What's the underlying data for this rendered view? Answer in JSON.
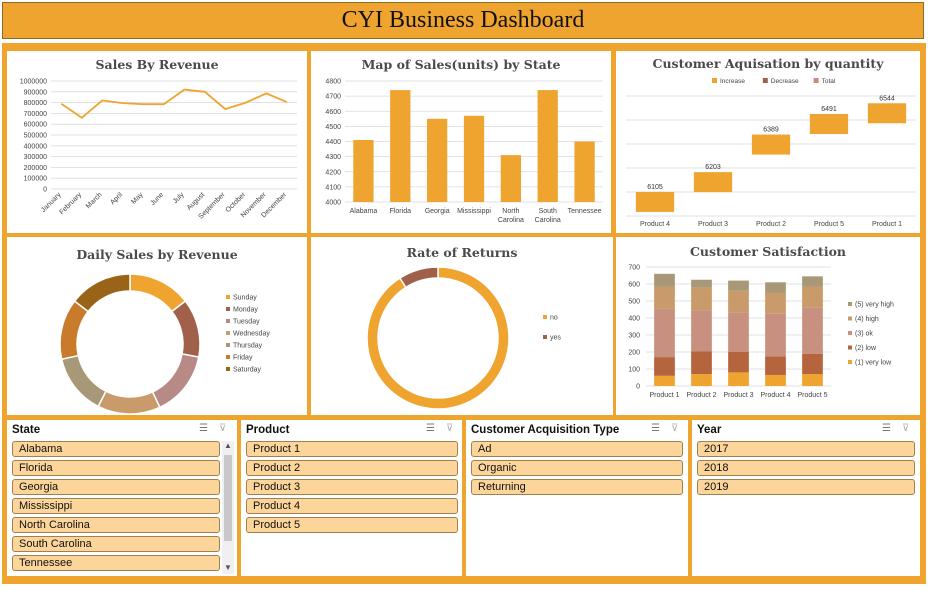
{
  "title": "CYI Business Dashboard",
  "chart_data": [
    {
      "id": "sales-by-revenue",
      "type": "line",
      "title": "Sales By Revenue",
      "categories": [
        "January",
        "February",
        "March",
        "April",
        "May",
        "June",
        "July",
        "August",
        "September",
        "October",
        "November",
        "December"
      ],
      "values": [
        790000,
        660000,
        820000,
        795000,
        785000,
        785000,
        920000,
        900000,
        740000,
        800000,
        885000,
        805000
      ],
      "ylim": [
        0,
        1000000
      ],
      "yticks": [
        "1000000",
        "900000",
        "800000",
        "700000",
        "600000",
        "500000",
        "400000",
        "300000",
        "200000",
        "100000",
        "0"
      ],
      "grid": true,
      "color": "#f0a430"
    },
    {
      "id": "map-of-sales",
      "type": "bar",
      "title": "Map of Sales(units) by State",
      "categories": [
        "Alabama",
        "Florida",
        "Georgia",
        "Mississippi",
        "North Carolina",
        "South Carolina",
        "Tennessee"
      ],
      "values": [
        4410,
        4740,
        4550,
        4570,
        4310,
        4740,
        4400
      ],
      "ylim": [
        4000,
        4800
      ],
      "yticks": [
        "4800",
        "4700",
        "4600",
        "4500",
        "4400",
        "4300",
        "4200",
        "4100",
        "4000"
      ],
      "grid": true,
      "color": "#f0a430"
    },
    {
      "id": "customer-acquisition",
      "type": "bar",
      "subtype": "waterfall",
      "title": "Customer Aquisation by quantity",
      "legend": [
        "Increase",
        "Decrease",
        "Total"
      ],
      "legend_colors": [
        "#f0a430",
        "#a0604a",
        "#c98a7a"
      ],
      "legend_position": "top",
      "categories": [
        "Product 4",
        "Product 3",
        "Product 2",
        "Product 5",
        "Product 1"
      ],
      "values": [
        6105,
        6203,
        6389,
        6491,
        6544
      ],
      "data_labels": [
        "6105",
        "6203",
        "6389",
        "6491",
        "6544"
      ],
      "grid": true
    },
    {
      "id": "daily-sales",
      "type": "pie",
      "subtype": "doughnut",
      "title": "Daily Sales by Revenue",
      "categories": [
        "Sunday",
        "Monday",
        "Tuesday",
        "Wednesday",
        "Thursday",
        "Friday",
        "Saturday"
      ],
      "values": [
        14.5,
        13.5,
        15.0,
        14.5,
        14.0,
        14.0,
        14.5
      ],
      "colors": [
        "#f0a430",
        "#a0604a",
        "#b88a85",
        "#c99a6a",
        "#a89878",
        "#c97a2a",
        "#9a6418"
      ],
      "legend_position": "right"
    },
    {
      "id": "rate-of-returns",
      "type": "pie",
      "subtype": "doughnut",
      "title": "Rate of Returns",
      "categories": [
        "no",
        "yes"
      ],
      "values": [
        91,
        9
      ],
      "colors": [
        "#f0a430",
        "#a0604a"
      ],
      "legend_position": "right"
    },
    {
      "id": "customer-satisfaction",
      "type": "bar",
      "subtype": "stacked",
      "title": "Customer Satisfaction",
      "categories": [
        "Product 1",
        "Product 2",
        "Product 3",
        "Product 4",
        "Product 5"
      ],
      "series": [
        {
          "name": "(1) very low",
          "color": "#f0a430",
          "values": [
            60,
            70,
            80,
            65,
            70
          ]
        },
        {
          "name": "(2) low",
          "color": "#b5653e",
          "values": [
            110,
            135,
            120,
            110,
            120
          ]
        },
        {
          "name": "(3) ok",
          "color": "#c8907f",
          "values": [
            285,
            240,
            230,
            250,
            270
          ]
        },
        {
          "name": "(4) high",
          "color": "#c99a6a",
          "values": [
            130,
            135,
            130,
            125,
            125
          ]
        },
        {
          "name": "(5) very high",
          "color": "#a89878",
          "values": [
            75,
            45,
            60,
            60,
            60
          ]
        }
      ],
      "ylim": [
        0,
        700
      ],
      "yticks": [
        "700",
        "600",
        "500",
        "400",
        "300",
        "200",
        "100",
        "0"
      ],
      "legend_position": "right",
      "grid": true
    }
  ],
  "slicers": {
    "state": {
      "header": "State",
      "items": [
        "Alabama",
        "Florida",
        "Georgia",
        "Mississippi",
        "North Carolina",
        "South Carolina",
        "Tennessee"
      ]
    },
    "product": {
      "header": "Product",
      "items": [
        "Product 1",
        "Product 2",
        "Product 3",
        "Product 4",
        "Product 5"
      ]
    },
    "acquisition": {
      "header": "Customer Acquisition Type",
      "items": [
        "Ad",
        "Organic",
        "Returning"
      ]
    },
    "year": {
      "header": "Year",
      "items": [
        "2017",
        "2018",
        "2019"
      ]
    }
  },
  "icons": {
    "multiselect": "multi-select-icon",
    "clearfilter": "clear-filter-icon",
    "scrollup": "scroll-up-arrow",
    "scrolldown": "scroll-down-arrow"
  }
}
